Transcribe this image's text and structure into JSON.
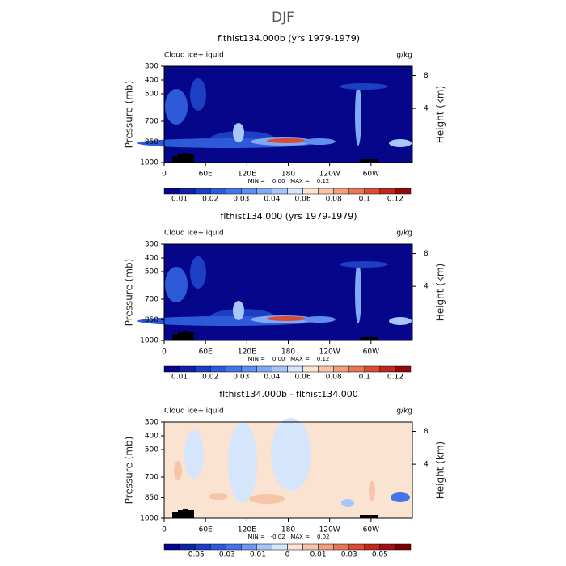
{
  "title": "DJF",
  "chart_data": [
    {
      "type": "contour",
      "title": "flthist134.000b (yrs 1979-1979)",
      "field_label": "Cloud ice+liquid",
      "units": "g/kg",
      "ylabel": "Pressure (mb)",
      "y2label": "Height (km)",
      "xlim": [
        0,
        360
      ],
      "xticks": [
        0,
        {
          "value": 60,
          "label": "60E"
        },
        {
          "value": 120,
          "label": "120E"
        },
        180,
        {
          "value": 240,
          "label": "120W"
        },
        {
          "value": 300,
          "label": "60W"
        }
      ],
      "ylim": [
        1000,
        300
      ],
      "yticks": [
        300,
        400,
        500,
        700,
        850,
        1000
      ],
      "y2ticks": [
        4,
        8
      ],
      "stats": "MIN =    0.00   MAX =    0.12",
      "colorbar": {
        "levels": [
          0.01,
          0.015,
          0.02,
          0.025,
          0.03,
          0.035,
          0.04,
          0.05,
          0.06,
          0.07,
          0.08,
          0.09,
          0.1,
          0.11,
          0.12
        ],
        "colors": [
          "#06068a",
          "#0f23a8",
          "#1c3fc4",
          "#2d5ad8",
          "#4474e6",
          "#5f8ef0",
          "#80aaf5",
          "#a7c6f9",
          "#d4e5fc",
          "#fbe3d2",
          "#f7c4a8",
          "#f19f7e",
          "#e77756",
          "#d74c33",
          "#bd2a1c",
          "#8f0a0a"
        ],
        "ticks": [
          0.01,
          0.02,
          0.03,
          0.04,
          0.06,
          0.08,
          0.1,
          0.12
        ]
      }
    },
    {
      "type": "contour",
      "title": "flthist134.000 (yrs 1979-1979)",
      "field_label": "Cloud ice+liquid",
      "units": "g/kg",
      "ylabel": "Pressure (mb)",
      "y2label": "Height (km)",
      "xlim": [
        0,
        360
      ],
      "xticks": [
        0,
        {
          "value": 60,
          "label": "60E"
        },
        {
          "value": 120,
          "label": "120E"
        },
        180,
        {
          "value": 240,
          "label": "120W"
        },
        {
          "value": 300,
          "label": "60W"
        }
      ],
      "ylim": [
        1000,
        300
      ],
      "yticks": [
        300,
        400,
        500,
        700,
        850,
        1000
      ],
      "y2ticks": [
        4,
        8
      ],
      "stats": "MIN =    0.00   MAX =    0.12",
      "colorbar": {
        "levels": [
          0.01,
          0.015,
          0.02,
          0.025,
          0.03,
          0.035,
          0.04,
          0.05,
          0.06,
          0.07,
          0.08,
          0.09,
          0.1,
          0.11,
          0.12
        ],
        "colors": [
          "#06068a",
          "#0f23a8",
          "#1c3fc4",
          "#2d5ad8",
          "#4474e6",
          "#5f8ef0",
          "#80aaf5",
          "#a7c6f9",
          "#d4e5fc",
          "#fbe3d2",
          "#f7c4a8",
          "#f19f7e",
          "#e77756",
          "#d74c33",
          "#bd2a1c",
          "#8f0a0a"
        ],
        "ticks": [
          0.01,
          0.02,
          0.03,
          0.04,
          0.06,
          0.08,
          0.1,
          0.12
        ]
      }
    },
    {
      "type": "contour",
      "title": "flthist134.000b - flthist134.000",
      "field_label": "Cloud ice+liquid",
      "units": "g/kg",
      "ylabel": "Pressure (mb)",
      "y2label": "Height (km)",
      "xlim": [
        0,
        360
      ],
      "xticks": [
        0,
        {
          "value": 60,
          "label": "60E"
        },
        {
          "value": 120,
          "label": "120E"
        },
        180,
        {
          "value": 240,
          "label": "120W"
        },
        {
          "value": 300,
          "label": "60W"
        }
      ],
      "ylim": [
        1000,
        300
      ],
      "yticks": [
        300,
        400,
        500,
        700,
        850,
        1000
      ],
      "y2ticks": [
        4,
        8
      ],
      "stats": "MIN =   -0.02   MAX =    0.02",
      "colorbar": {
        "levels": [
          -0.06,
          -0.05,
          -0.04,
          -0.03,
          -0.02,
          -0.01,
          -0.005,
          0,
          0.005,
          0.01,
          0.02,
          0.03,
          0.04,
          0.05,
          0.06
        ],
        "colors": [
          "#06068a",
          "#0f23a8",
          "#1c3fc4",
          "#2d5ad8",
          "#4474e6",
          "#6c98f2",
          "#a7c6f9",
          "#d4e5fc",
          "#fbe3d2",
          "#f7c4a8",
          "#f19f7e",
          "#e77756",
          "#d74c33",
          "#bd2a1c",
          "#a01212",
          "#7a0000"
        ],
        "ticks": [
          -0.05,
          -0.03,
          -0.01,
          0,
          0.01,
          0.03,
          0.05
        ]
      }
    }
  ]
}
